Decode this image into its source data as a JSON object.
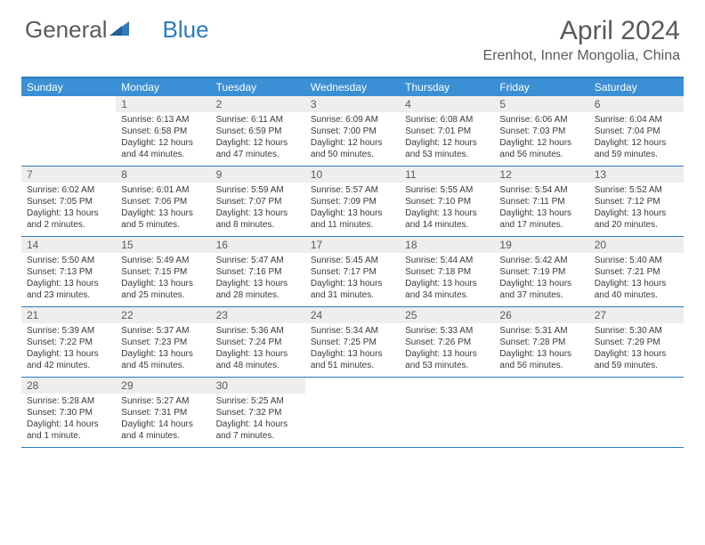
{
  "logo": {
    "text_general": "General",
    "text_blue": "Blue"
  },
  "title": "April 2024",
  "location": "Erenhot, Inner Mongolia, China",
  "colors": {
    "header_bg": "#3b8fd4",
    "border": "#2b7bbf",
    "daynum_bg": "#eeeeee",
    "text": "#5a5a5a"
  },
  "weekdays": [
    "Sunday",
    "Monday",
    "Tuesday",
    "Wednesday",
    "Thursday",
    "Friday",
    "Saturday"
  ],
  "weeks": [
    [
      {
        "n": "",
        "lines": []
      },
      {
        "n": "1",
        "lines": [
          "Sunrise: 6:13 AM",
          "Sunset: 6:58 PM",
          "Daylight: 12 hours and 44 minutes."
        ]
      },
      {
        "n": "2",
        "lines": [
          "Sunrise: 6:11 AM",
          "Sunset: 6:59 PM",
          "Daylight: 12 hours and 47 minutes."
        ]
      },
      {
        "n": "3",
        "lines": [
          "Sunrise: 6:09 AM",
          "Sunset: 7:00 PM",
          "Daylight: 12 hours and 50 minutes."
        ]
      },
      {
        "n": "4",
        "lines": [
          "Sunrise: 6:08 AM",
          "Sunset: 7:01 PM",
          "Daylight: 12 hours and 53 minutes."
        ]
      },
      {
        "n": "5",
        "lines": [
          "Sunrise: 6:06 AM",
          "Sunset: 7:03 PM",
          "Daylight: 12 hours and 56 minutes."
        ]
      },
      {
        "n": "6",
        "lines": [
          "Sunrise: 6:04 AM",
          "Sunset: 7:04 PM",
          "Daylight: 12 hours and 59 minutes."
        ]
      }
    ],
    [
      {
        "n": "7",
        "lines": [
          "Sunrise: 6:02 AM",
          "Sunset: 7:05 PM",
          "Daylight: 13 hours and 2 minutes."
        ]
      },
      {
        "n": "8",
        "lines": [
          "Sunrise: 6:01 AM",
          "Sunset: 7:06 PM",
          "Daylight: 13 hours and 5 minutes."
        ]
      },
      {
        "n": "9",
        "lines": [
          "Sunrise: 5:59 AM",
          "Sunset: 7:07 PM",
          "Daylight: 13 hours and 8 minutes."
        ]
      },
      {
        "n": "10",
        "lines": [
          "Sunrise: 5:57 AM",
          "Sunset: 7:09 PM",
          "Daylight: 13 hours and 11 minutes."
        ]
      },
      {
        "n": "11",
        "lines": [
          "Sunrise: 5:55 AM",
          "Sunset: 7:10 PM",
          "Daylight: 13 hours and 14 minutes."
        ]
      },
      {
        "n": "12",
        "lines": [
          "Sunrise: 5:54 AM",
          "Sunset: 7:11 PM",
          "Daylight: 13 hours and 17 minutes."
        ]
      },
      {
        "n": "13",
        "lines": [
          "Sunrise: 5:52 AM",
          "Sunset: 7:12 PM",
          "Daylight: 13 hours and 20 minutes."
        ]
      }
    ],
    [
      {
        "n": "14",
        "lines": [
          "Sunrise: 5:50 AM",
          "Sunset: 7:13 PM",
          "Daylight: 13 hours and 23 minutes."
        ]
      },
      {
        "n": "15",
        "lines": [
          "Sunrise: 5:49 AM",
          "Sunset: 7:15 PM",
          "Daylight: 13 hours and 25 minutes."
        ]
      },
      {
        "n": "16",
        "lines": [
          "Sunrise: 5:47 AM",
          "Sunset: 7:16 PM",
          "Daylight: 13 hours and 28 minutes."
        ]
      },
      {
        "n": "17",
        "lines": [
          "Sunrise: 5:45 AM",
          "Sunset: 7:17 PM",
          "Daylight: 13 hours and 31 minutes."
        ]
      },
      {
        "n": "18",
        "lines": [
          "Sunrise: 5:44 AM",
          "Sunset: 7:18 PM",
          "Daylight: 13 hours and 34 minutes."
        ]
      },
      {
        "n": "19",
        "lines": [
          "Sunrise: 5:42 AM",
          "Sunset: 7:19 PM",
          "Daylight: 13 hours and 37 minutes."
        ]
      },
      {
        "n": "20",
        "lines": [
          "Sunrise: 5:40 AM",
          "Sunset: 7:21 PM",
          "Daylight: 13 hours and 40 minutes."
        ]
      }
    ],
    [
      {
        "n": "21",
        "lines": [
          "Sunrise: 5:39 AM",
          "Sunset: 7:22 PM",
          "Daylight: 13 hours and 42 minutes."
        ]
      },
      {
        "n": "22",
        "lines": [
          "Sunrise: 5:37 AM",
          "Sunset: 7:23 PM",
          "Daylight: 13 hours and 45 minutes."
        ]
      },
      {
        "n": "23",
        "lines": [
          "Sunrise: 5:36 AM",
          "Sunset: 7:24 PM",
          "Daylight: 13 hours and 48 minutes."
        ]
      },
      {
        "n": "24",
        "lines": [
          "Sunrise: 5:34 AM",
          "Sunset: 7:25 PM",
          "Daylight: 13 hours and 51 minutes."
        ]
      },
      {
        "n": "25",
        "lines": [
          "Sunrise: 5:33 AM",
          "Sunset: 7:26 PM",
          "Daylight: 13 hours and 53 minutes."
        ]
      },
      {
        "n": "26",
        "lines": [
          "Sunrise: 5:31 AM",
          "Sunset: 7:28 PM",
          "Daylight: 13 hours and 56 minutes."
        ]
      },
      {
        "n": "27",
        "lines": [
          "Sunrise: 5:30 AM",
          "Sunset: 7:29 PM",
          "Daylight: 13 hours and 59 minutes."
        ]
      }
    ],
    [
      {
        "n": "28",
        "lines": [
          "Sunrise: 5:28 AM",
          "Sunset: 7:30 PM",
          "Daylight: 14 hours and 1 minute."
        ]
      },
      {
        "n": "29",
        "lines": [
          "Sunrise: 5:27 AM",
          "Sunset: 7:31 PM",
          "Daylight: 14 hours and 4 minutes."
        ]
      },
      {
        "n": "30",
        "lines": [
          "Sunrise: 5:25 AM",
          "Sunset: 7:32 PM",
          "Daylight: 14 hours and 7 minutes."
        ]
      },
      {
        "n": "",
        "lines": []
      },
      {
        "n": "",
        "lines": []
      },
      {
        "n": "",
        "lines": []
      },
      {
        "n": "",
        "lines": []
      }
    ]
  ]
}
